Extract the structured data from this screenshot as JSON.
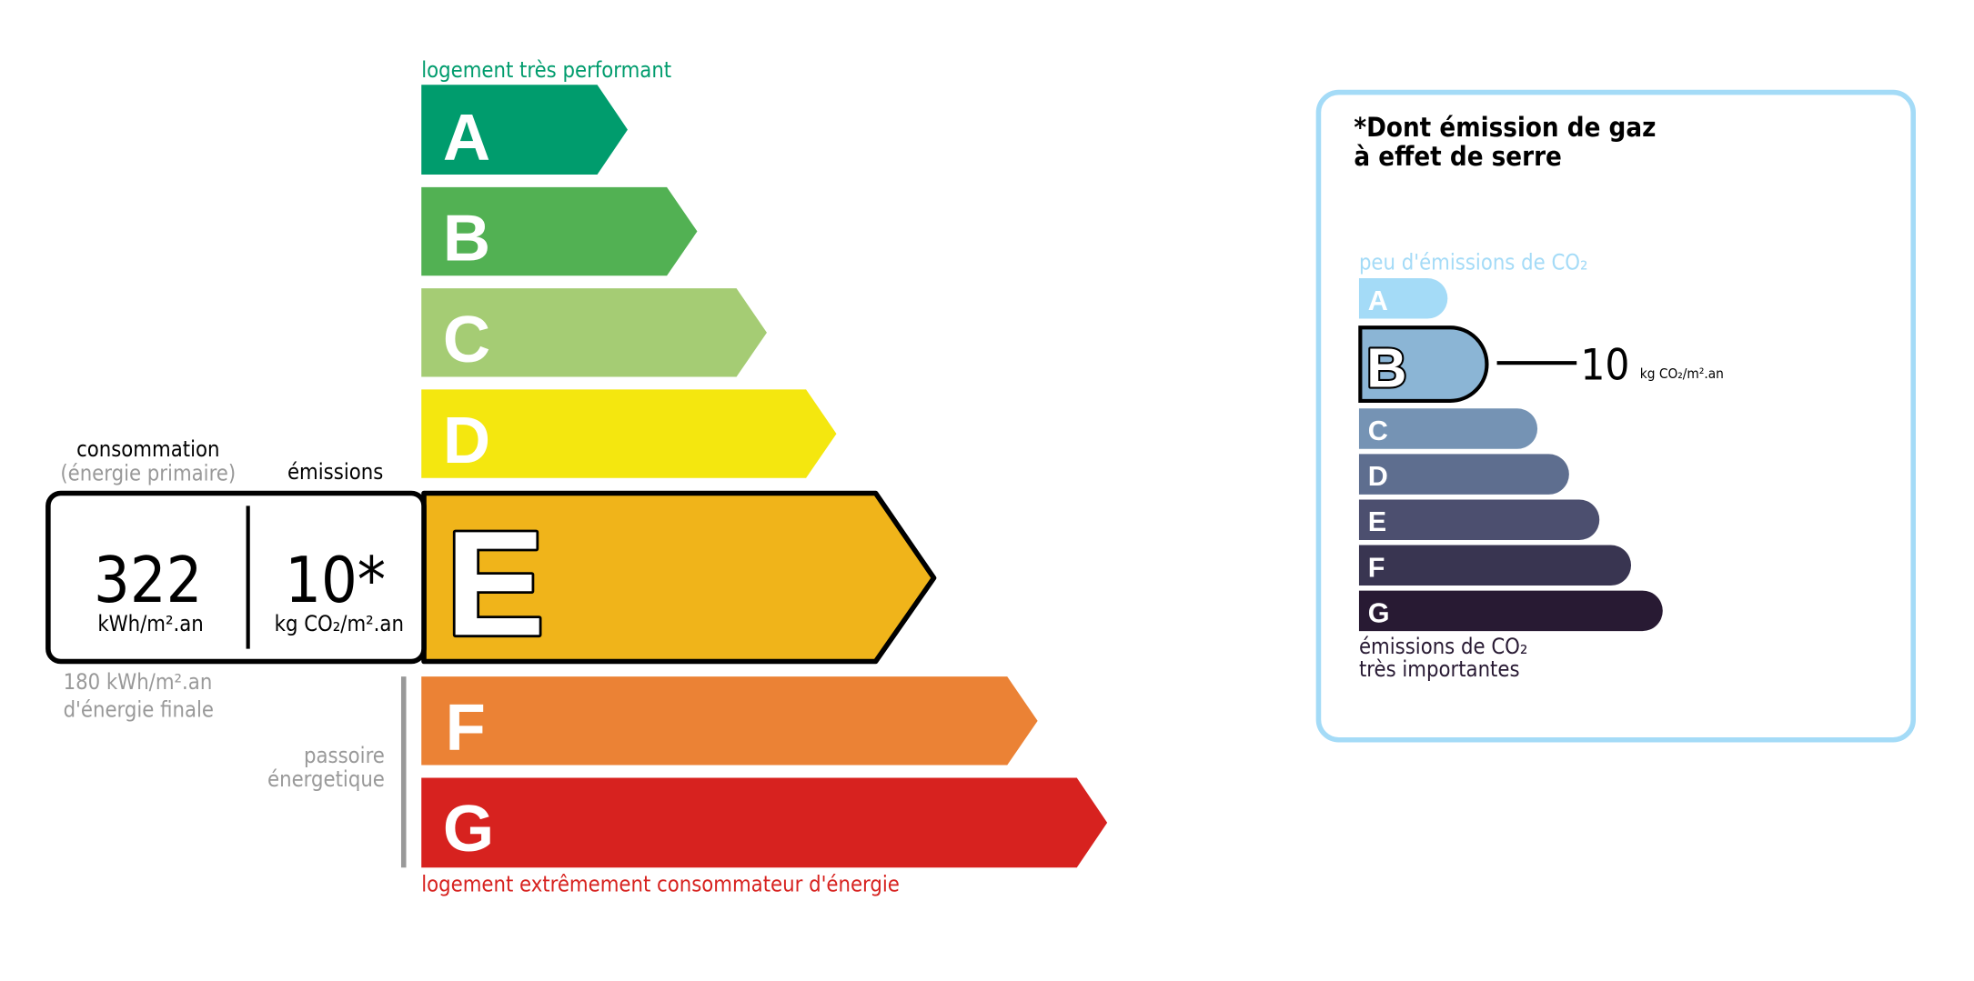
{
  "energy": {
    "top_label": "logement très performant",
    "bottom_label": "logement extrêmement consommateur d'énergie",
    "classes": [
      {
        "letter": "A",
        "color": "#009c6d"
      },
      {
        "letter": "B",
        "color": "#52b153"
      },
      {
        "letter": "C",
        "color": "#a5cc74"
      },
      {
        "letter": "D",
        "color": "#f4e70f"
      },
      {
        "letter": "E",
        "color": "#f0b41a"
      },
      {
        "letter": "F",
        "color": "#eb8235"
      },
      {
        "letter": "G",
        "color": "#d7221f"
      }
    ],
    "current_class": "E",
    "consumption_header": "consommation",
    "consumption_subheader": "(énergie primaire)",
    "emissions_header": "émissions",
    "consumption_value": "322",
    "consumption_unit": "kWh/m².an",
    "emissions_value": "10*",
    "emissions_unit": "kg CO₂/m².an",
    "final_energy_value": "180 kWh/m².an",
    "final_energy_label": "d'énergie finale",
    "passoire_line1": "passoire",
    "passoire_line2": "énergetique"
  },
  "ges": {
    "title_line1": "*Dont émission de gaz",
    "title_line2": "à effet de serre",
    "top_label": "peu d'émissions de CO₂",
    "bottom_label_line1": "émissions de CO₂",
    "bottom_label_line2": "très importantes",
    "classes": [
      {
        "letter": "A",
        "color": "#a4dbf7"
      },
      {
        "letter": "B",
        "color": "#8bb5d5"
      },
      {
        "letter": "C",
        "color": "#7593b4"
      },
      {
        "letter": "D",
        "color": "#5e6e8f"
      },
      {
        "letter": "E",
        "color": "#4c4f6f"
      },
      {
        "letter": "F",
        "color": "#393551"
      },
      {
        "letter": "G",
        "color": "#281a33"
      }
    ],
    "current_class": "B",
    "value": "10",
    "unit": "kg CO₂/m².an",
    "border_color": "#a4dbf7"
  }
}
